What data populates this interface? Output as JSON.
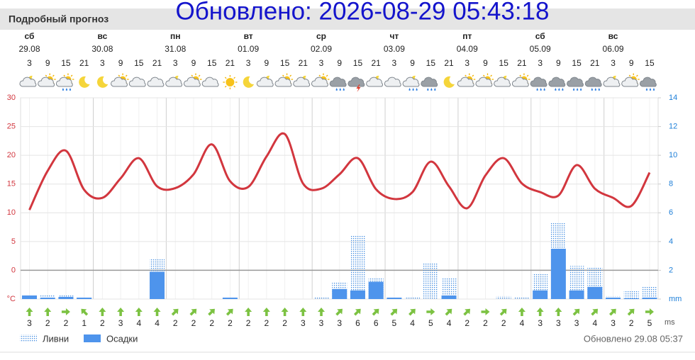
{
  "header": {
    "title": "Подробный прогноз"
  },
  "overlay": "Обновлено: 2026-08-29 05:43:18",
  "days": [
    {
      "name": "сб",
      "date": "29.08"
    },
    {
      "name": "вс",
      "date": "30.08"
    },
    {
      "name": "пн",
      "date": "31.08"
    },
    {
      "name": "вт",
      "date": "01.09"
    },
    {
      "name": "ср",
      "date": "02.09"
    },
    {
      "name": "чт",
      "date": "03.09"
    },
    {
      "name": "пт",
      "date": "04.09"
    },
    {
      "name": "сб",
      "date": "05.09"
    },
    {
      "name": "вс",
      "date": "06.09"
    }
  ],
  "chart_data": {
    "type": "combo",
    "categories": [
      3,
      9,
      15,
      21,
      3,
      9,
      15,
      21,
      3,
      9,
      15,
      21,
      3,
      9,
      15,
      21,
      3,
      9,
      15,
      21,
      3,
      9,
      15,
      21,
      3,
      9,
      15,
      21,
      3,
      9,
      15,
      21,
      3,
      9,
      15
    ],
    "ylim": [
      -5,
      30
    ],
    "yticks": [
      {
        "value": -5,
        "label": "°C"
      },
      0,
      5,
      10,
      15,
      20,
      25,
      30
    ],
    "y2lim": [
      0,
      14
    ],
    "y2ticks": [
      {
        "value": 0,
        "label": "mm"
      },
      2,
      4,
      6,
      8,
      10,
      12,
      14
    ],
    "grid": true,
    "series": [
      {
        "type": "line",
        "color": "#d2363e",
        "values": [
          10.5,
          17.3,
          20.8,
          14,
          12.6,
          16,
          19.5,
          14.6,
          14.3,
          16.7,
          21.9,
          15.5,
          14.5,
          19.8,
          23.7,
          15.1,
          14.2,
          16.7,
          19.5,
          14.1,
          12.4,
          13.6,
          18.9,
          14.6,
          10.8,
          16.5,
          19.5,
          15.1,
          13.6,
          13,
          18.3,
          14.2,
          12.6,
          11.2,
          17
        ]
      },
      {
        "type": "bar",
        "name": "Ливни",
        "color": "#3f8be0",
        "axis": "y2",
        "pattern": "dotted",
        "values": [
          0.3,
          0.3,
          0.3,
          0.1,
          0,
          0,
          0,
          2.8,
          0,
          0,
          0,
          0,
          0,
          0,
          0,
          0,
          0.1,
          1.2,
          4.4,
          1.5,
          0.1,
          0.1,
          2.5,
          1.5,
          0,
          0,
          0.2,
          0.1,
          1.8,
          5.3,
          2.3,
          2.2,
          0.2,
          0.6,
          0.9
        ]
      },
      {
        "type": "bar",
        "name": "Осадки",
        "color": "#4e94ec",
        "axis": "y2",
        "pattern": "solid",
        "values": [
          0.25,
          0.1,
          0.15,
          0.1,
          0,
          0,
          0,
          1.9,
          0,
          0,
          0,
          0.1,
          0,
          0,
          0,
          0,
          0,
          0.7,
          0.6,
          1.2,
          0.1,
          0,
          0,
          0.25,
          0,
          0,
          0,
          0,
          0.6,
          3.5,
          0.6,
          0.85,
          0.1,
          0.05,
          0.1
        ]
      }
    ],
    "wind": {
      "unit": "ms",
      "values": [
        3,
        2,
        2,
        1,
        2,
        3,
        4,
        4,
        2,
        2,
        2,
        2,
        2,
        2,
        2,
        3,
        3,
        3,
        6,
        6,
        5,
        4,
        5,
        4,
        2,
        2,
        2,
        4,
        3,
        3,
        3,
        4,
        3,
        2,
        5
      ]
    }
  },
  "footer": "Обновлено 29.08 05:37"
}
